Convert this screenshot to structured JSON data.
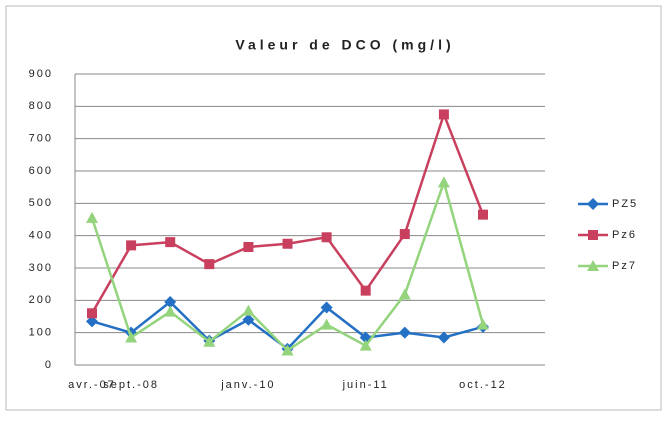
{
  "chart_data": {
    "type": "line",
    "title": "Valeur de DCO (mg/l)",
    "categories": [
      "avr.-07",
      "sept.-08",
      null,
      null,
      "janv.-10",
      null,
      null,
      "juin-11",
      null,
      null,
      "oct.-12"
    ],
    "series": [
      {
        "name": "PZ5",
        "color": "#2370c4",
        "marker": "diamond",
        "values": [
          135,
          100,
          195,
          75,
          140,
          50,
          178,
          85,
          100,
          85,
          118
        ]
      },
      {
        "name": "Pz6",
        "color": "#c8405e",
        "marker": "square",
        "values": [
          160,
          370,
          380,
          312,
          365,
          375,
          395,
          230,
          405,
          775,
          465
        ]
      },
      {
        "name": "Pz7",
        "color": "#93d47c",
        "marker": "triangle",
        "values": [
          455,
          85,
          165,
          72,
          168,
          45,
          125,
          60,
          218,
          565,
          125
        ]
      }
    ],
    "ylim": [
      0,
      900
    ],
    "yticks": [
      0,
      100,
      200,
      300,
      400,
      500,
      600,
      700,
      800,
      900
    ],
    "grid": true,
    "legend": "right"
  }
}
